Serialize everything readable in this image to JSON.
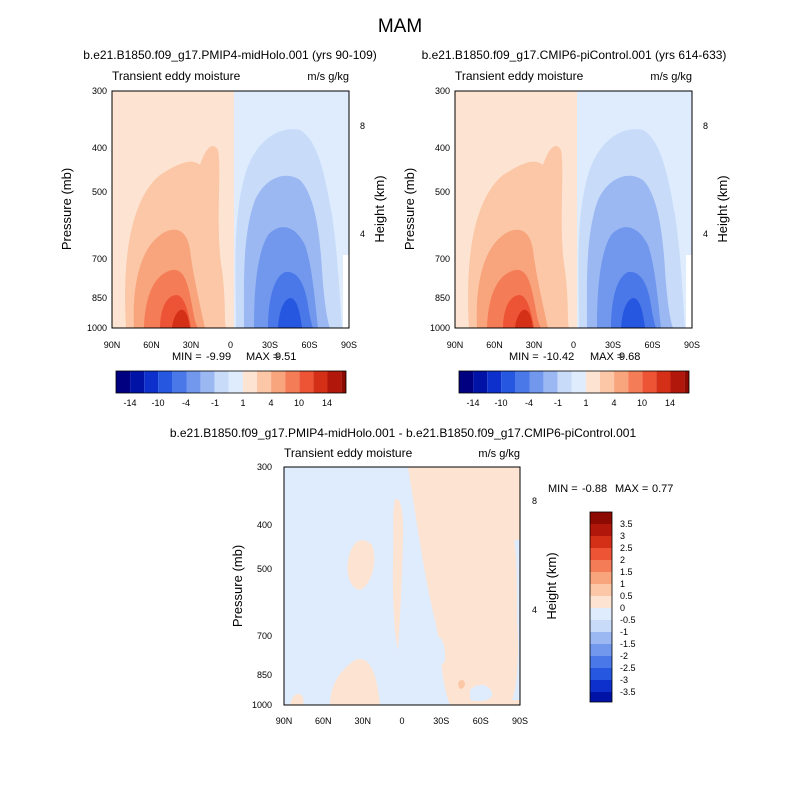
{
  "figure": {
    "title": "MAM"
  },
  "colors": {
    "neg": [
      "#000080",
      "#0013a6",
      "#0d2fcc",
      "#2657e0",
      "#4a78e8",
      "#7298ee",
      "#9cb8f3",
      "#c8dcfa",
      "#deecfe"
    ],
    "pos": [
      "#fde4d2",
      "#fbc7a6",
      "#f8a47c",
      "#f47c57",
      "#ec5435",
      "#d42f17",
      "#b1170a",
      "#8c0a02"
    ]
  },
  "chart_data": [
    {
      "type": "contour",
      "title": "b.e21.B1850.f09_g17.PMIP4-midHolo.001 (yrs 90-109)",
      "left_label": "Transient eddy moisture",
      "right_label": "m/s g/kg",
      "ylabel": "Pressure (mb)",
      "y2label": "Height (km)",
      "x_ticks": [
        "90N",
        "60N",
        "30N",
        "0",
        "30S",
        "60S",
        "90S"
      ],
      "y_ticks": [
        300,
        400,
        500,
        700,
        850,
        1000
      ],
      "y2_ticks": [
        8,
        4
      ],
      "stats": {
        "min_label": "MIN = ",
        "min": "-9.99",
        "max_label": "MAX = ",
        "max": "9.51"
      },
      "colorbar_labels": [
        "-14",
        "-10",
        "-4",
        "-1",
        "1",
        "4",
        "10",
        "14"
      ]
    },
    {
      "type": "contour",
      "title": "b.e21.B1850.f09_g17.CMIP6-piControl.001 (yrs 614-633)",
      "left_label": "Transient eddy moisture",
      "right_label": "m/s g/kg",
      "ylabel": "Pressure (mb)",
      "y2label": "Height (km)",
      "x_ticks": [
        "90N",
        "60N",
        "30N",
        "0",
        "30S",
        "60S",
        "90S"
      ],
      "y_ticks": [
        300,
        400,
        500,
        700,
        850,
        1000
      ],
      "y2_ticks": [
        8,
        4
      ],
      "stats": {
        "min_label": "MIN = ",
        "min": "-10.42",
        "max_label": "MAX = ",
        "max": "9.68"
      },
      "colorbar_labels": [
        "-14",
        "-10",
        "-4",
        "-1",
        "1",
        "4",
        "10",
        "14"
      ]
    },
    {
      "type": "contour",
      "title": "b.e21.B1850.f09_g17.PMIP4-midHolo.001 - b.e21.B1850.f09_g17.CMIP6-piControl.001",
      "left_label": "Transient eddy moisture",
      "right_label": "m/s g/kg",
      "ylabel": "Pressure (mb)",
      "y2label": "Height (km)",
      "x_ticks": [
        "90N",
        "60N",
        "30N",
        "0",
        "30S",
        "60S",
        "90S"
      ],
      "y_ticks": [
        300,
        400,
        500,
        700,
        850,
        1000
      ],
      "y2_ticks": [
        8,
        4
      ],
      "stats": {
        "min_label": "MIN = ",
        "min": "-0.88",
        "max_label": "MAX = ",
        "max": "0.77"
      },
      "colorbar_labels": [
        "3.5",
        "3",
        "2.5",
        "2",
        "1.5",
        "1",
        "0.5",
        "0",
        "-0.5",
        "-1",
        "-1.5",
        "-2",
        "-2.5",
        "-3",
        "-3.5"
      ]
    }
  ]
}
